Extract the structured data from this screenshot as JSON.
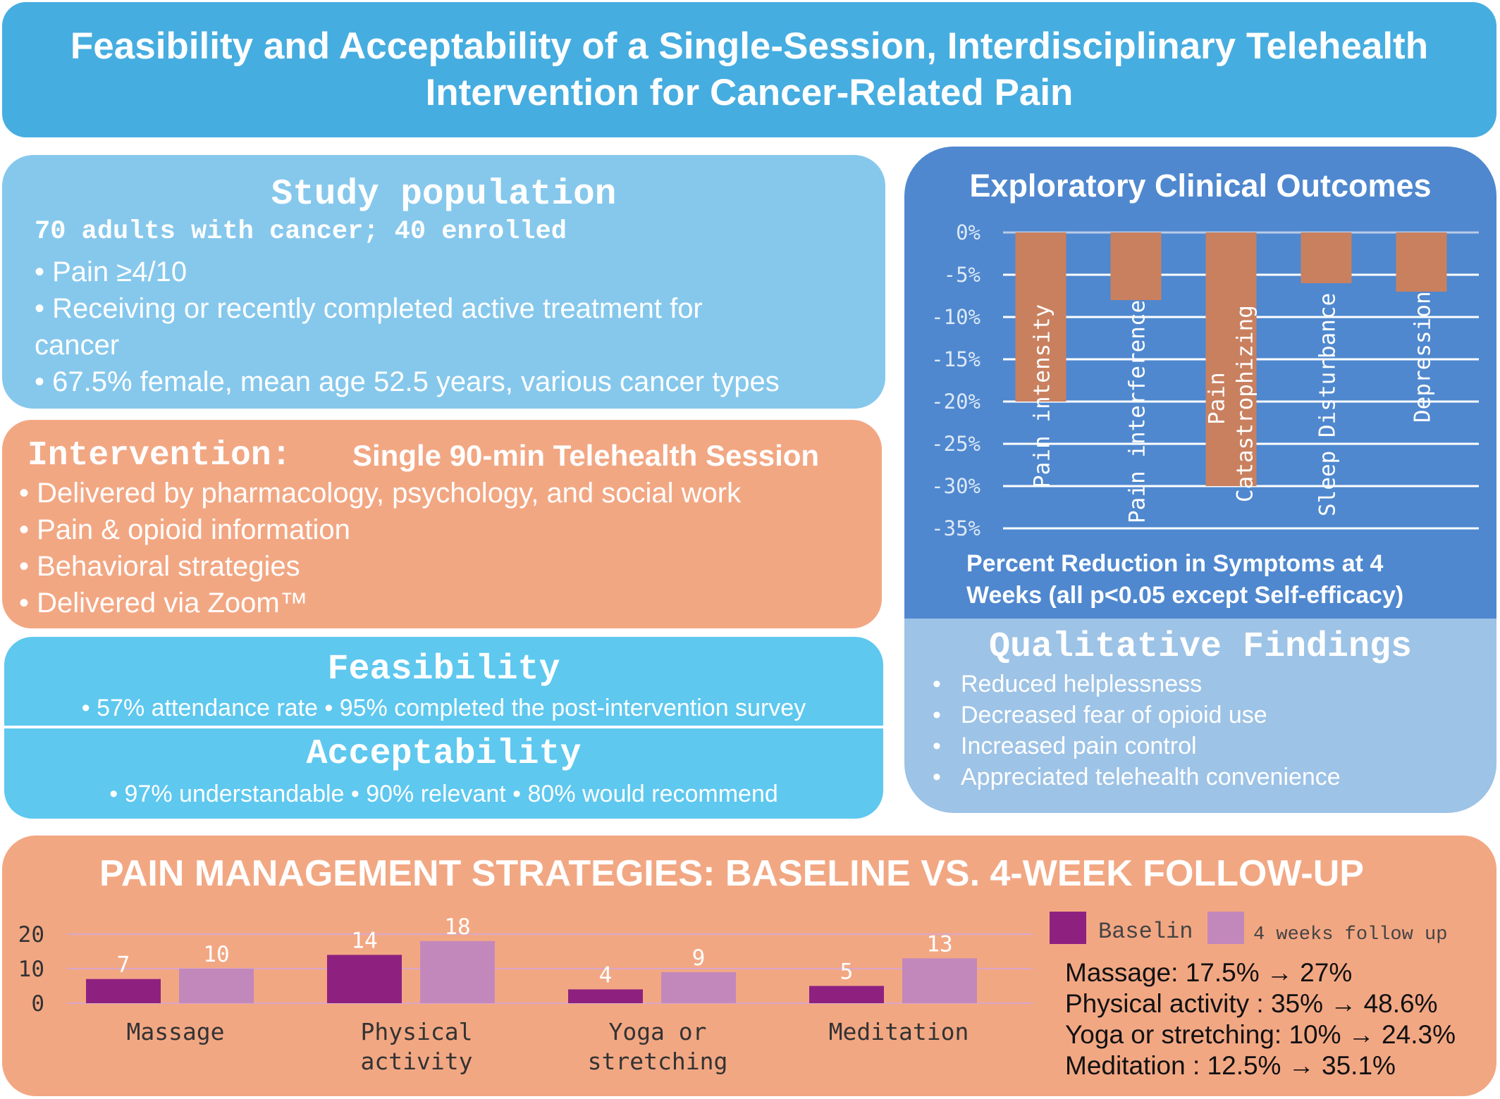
{
  "title": "Feasibility and Acceptability of a Single-Session, Interdisciplinary Telehealth Intervention for Cancer-Related Pain",
  "population": {
    "heading": "Study population",
    "subheading": "70 adults with cancer; 40 enrolled",
    "bullet1": "•    Pain ≥4/10",
    "bullet2a": "•    Receiving or recently completed active treatment for",
    "bullet2b": "cancer",
    "bullet3": "•  67.5% female, mean age 52.5 years, various cancer types"
  },
  "intervention": {
    "heading": "Intervention:",
    "subheading": "Single 90-min Telehealth Session",
    "bullets": [
      "• Delivered by pharmacology, psychology, and social work",
      "• Pain & opioid information",
      "• Behavioral strategies",
      "• Delivered via Zoom™"
    ]
  },
  "feasibility": {
    "heading": "Feasibility",
    "line": "• 57% attendance rate  • 95% completed the post-intervention survey"
  },
  "acceptability": {
    "heading": "Acceptability",
    "line": "• 97% understandable  • 90% relevant  • 80% would recommend"
  },
  "outcomes": {
    "title": "Exploratory Clinical Outcomes",
    "caption_line1": "Percent Reduction in Symptoms at 4",
    "caption_line2": "Weeks (all p<0.05 except Self-efficacy)"
  },
  "qualitative": {
    "heading": "Qualitative Findings",
    "items": [
      "Reduced helplessness",
      "Decreased fear of opioid use",
      "Increased pain control",
      "Appreciated telehealth convenience"
    ]
  },
  "strategies": {
    "title": "PAIN MANAGEMENT STRATEGIES: BASELINE VS. 4-WEEK FOLLOW-UP",
    "percent_lines": [
      "Massage: 17.5% → 27%",
      "Physical activity : 35% → 48.6%",
      "Yoga or stretching: 10% → 24.3%",
      "Meditation : 12.5% → 35.1%"
    ]
  },
  "chart_data": [
    {
      "type": "bar",
      "categories": [
        "Pain intensity",
        "Pain interference",
        "Pain Catastrophizing",
        "Sleep Disturbance",
        "Depression"
      ],
      "values": [
        -20,
        -8,
        -30,
        -6,
        -7
      ],
      "ylim": [
        -35,
        0
      ],
      "yticks": [
        "0%",
        "-5%",
        "-10%",
        "-15%",
        "-20%",
        "-25%",
        "-30%",
        "-35%"
      ],
      "grid": true,
      "color": "#c9805f"
    },
    {
      "type": "bar",
      "categories": [
        "Massage",
        "Physical activity",
        "Yoga or stretching",
        "Meditation"
      ],
      "series": [
        {
          "name": "Baselin",
          "values": [
            7,
            14,
            4,
            5
          ],
          "color": "#8e2180"
        },
        {
          "name": "4 weeks follow up",
          "values": [
            10,
            18,
            9,
            13
          ],
          "color": "#c388bb"
        }
      ],
      "ylim": [
        0,
        20
      ],
      "yticks": [
        "0",
        "10",
        "20"
      ],
      "grid": true,
      "legend": "right"
    }
  ]
}
